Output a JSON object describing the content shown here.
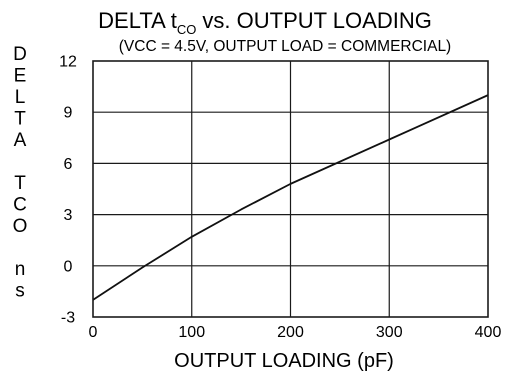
{
  "chart_data": {
    "type": "line",
    "title": "DELTA t",
    "title_subscript": "CO",
    "title_suffix": " vs. OUTPUT LOADING",
    "subtitle": "(VCC = 4.5V, OUTPUT LOAD = COMMERCIAL)",
    "xlabel": "OUTPUT LOADING (pF)",
    "ylabel_lines": [
      "D",
      "E",
      "L",
      "T",
      "A",
      "",
      "T",
      "C",
      "O",
      "",
      "n",
      "s"
    ],
    "xlim": [
      0,
      400
    ],
    "ylim": [
      -3,
      12
    ],
    "x_ticks": [
      0,
      100,
      200,
      300,
      400
    ],
    "x_tick_labels": [
      "0",
      "100",
      "200",
      "300",
      "400"
    ],
    "y_ticks": [
      -3,
      0,
      3,
      6,
      9,
      12
    ],
    "y_tick_labels": [
      "-3",
      "0",
      "3",
      "6",
      "9",
      "12"
    ],
    "grid": true,
    "series": [
      {
        "x": [
          0,
          50,
          100,
          150,
          200,
          300,
          400
        ],
        "y": [
          -2.0,
          -0.1,
          1.7,
          3.3,
          4.8,
          7.4,
          10.0
        ],
        "color": "#111111"
      }
    ]
  }
}
